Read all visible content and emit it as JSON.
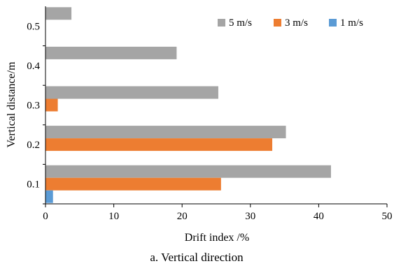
{
  "chart_data": {
    "type": "bar",
    "orientation": "horizontal",
    "categories": [
      "0.1",
      "0.2",
      "0.3",
      "0.4",
      "0.5"
    ],
    "series": [
      {
        "name": "5 m/s",
        "color": "#a5a5a5",
        "values": [
          41.8,
          35.2,
          25.3,
          19.2,
          3.8
        ]
      },
      {
        "name": "3 m/s",
        "color": "#ed7d31",
        "values": [
          25.7,
          33.2,
          1.8,
          0,
          0
        ]
      },
      {
        "name": "1 m/s",
        "color": "#5b9bd5",
        "values": [
          1.1,
          0,
          0,
          0,
          0
        ]
      }
    ],
    "xlabel": "Drift index /%",
    "ylabel": "Vertical distance/m",
    "xlim": [
      0,
      50
    ],
    "xticks": [
      "0",
      "10",
      "20",
      "30",
      "40",
      "50"
    ],
    "grid": false,
    "legend_position": "top-right",
    "legend_order": [
      "5 m/s",
      "3 m/s",
      "1 m/s"
    ],
    "caption": "a. Vertical direction"
  }
}
